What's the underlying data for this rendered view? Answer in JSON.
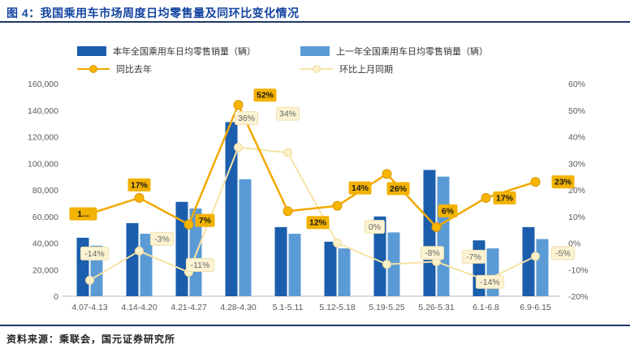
{
  "title": "图 4：我国乘用车市场周度日均零售量及同环比变化情况",
  "source": "资料来源：乘联会，国元证券研究所",
  "legend": {
    "bar_this_year": "本年全国乘用车日均零售销量（辆）",
    "bar_last_year": "上一年全国乘用车日均零售销量（辆）",
    "line_yoy": "同比去年",
    "line_mom": "环比上月同期"
  },
  "colors": {
    "title": "#1545A0",
    "rule": "#1F3864",
    "bar_this_year": "#1B5EAD",
    "bar_last_year": "#5B9BD5",
    "line_yoy": "#F2A900",
    "marker_yoy_fill": "#F7B500",
    "marker_yoy_stroke": "#D99600",
    "line_mom": "#F7E3A3",
    "marker_mom_fill": "#FBF0C8",
    "marker_mom_stroke": "#EFD9A0",
    "label_yoy_bg": "#F2B201",
    "label_mom_bg": "#FCF3D2",
    "label_mom_border": "#EFE0B0",
    "axis_text": "#595959",
    "axis_line": "#BBBBBB"
  },
  "chart_data": {
    "type": "combo bar+line",
    "categories": [
      "4.07-4.13",
      "4.14-4.20",
      "4.21-4.27",
      "4.28-4.30",
      "5.1-5.11",
      "5.12-5.18",
      "5.19-5.25",
      "5.26-5.31",
      "6.1-6.8",
      "6.9-6.15"
    ],
    "series": [
      {
        "name": "本年全国乘用车日均零售销量（辆）",
        "type": "bar",
        "axis": "left",
        "values": [
          44000,
          55000,
          71000,
          131000,
          52000,
          41000,
          60000,
          95000,
          42000,
          52000
        ]
      },
      {
        "name": "上一年全国乘用车日均零售销量（辆）",
        "type": "bar",
        "axis": "left",
        "values": [
          38000,
          47000,
          66000,
          88000,
          47000,
          36000,
          48000,
          90000,
          36000,
          43000
        ]
      },
      {
        "name": "同比去年",
        "type": "line",
        "axis": "right",
        "values_pct": [
          11,
          17,
          7,
          52,
          12,
          14,
          26,
          6,
          17,
          23
        ],
        "labels": [
          "1...",
          "17%",
          "7%",
          "52%",
          "12%",
          "14%",
          "26%",
          "6%",
          "17%",
          "23%"
        ],
        "label_offsets": [
          [
            -8,
            0
          ],
          [
            0,
            -16
          ],
          [
            20,
            -5
          ],
          [
            33,
            -12
          ],
          [
            37,
            14
          ],
          [
            28,
            -22
          ],
          [
            14,
            18
          ],
          [
            14,
            -20
          ],
          [
            23,
            0
          ],
          [
            34,
            0
          ]
        ]
      },
      {
        "name": "环比上月同期",
        "type": "line",
        "axis": "right",
        "values_pct": [
          -14,
          -3,
          -11,
          36,
          34,
          0,
          -8,
          -7,
          -14,
          -5
        ],
        "labels": [
          "-14%",
          "-3%",
          "-11%",
          "36%",
          "34%",
          "0%",
          "-8%",
          "-7%",
          "-14%",
          "-5%"
        ],
        "label_offsets": [
          [
            6,
            -33
          ],
          [
            28,
            -15
          ],
          [
            14,
            -9
          ],
          [
            10,
            -36
          ],
          [
            0,
            -48
          ],
          [
            46,
            -20
          ],
          [
            56,
            -14
          ],
          [
            46,
            -6
          ],
          [
            5,
            2
          ],
          [
            34,
            -4
          ]
        ]
      }
    ],
    "left_axis": {
      "min": 0,
      "max": 160000,
      "step": 20000,
      "tick_labels": [
        "0",
        "20,000",
        "40,000",
        "60,000",
        "80,000",
        "100,000",
        "120,000",
        "140,000",
        "160,000"
      ]
    },
    "right_axis": {
      "min": -20,
      "max": 60,
      "step": 10,
      "tick_labels": [
        "-20%",
        "-10%",
        "0%",
        "10%",
        "20%",
        "30%",
        "40%",
        "50%",
        "60%"
      ]
    },
    "grid": false,
    "legend_position": "top"
  }
}
